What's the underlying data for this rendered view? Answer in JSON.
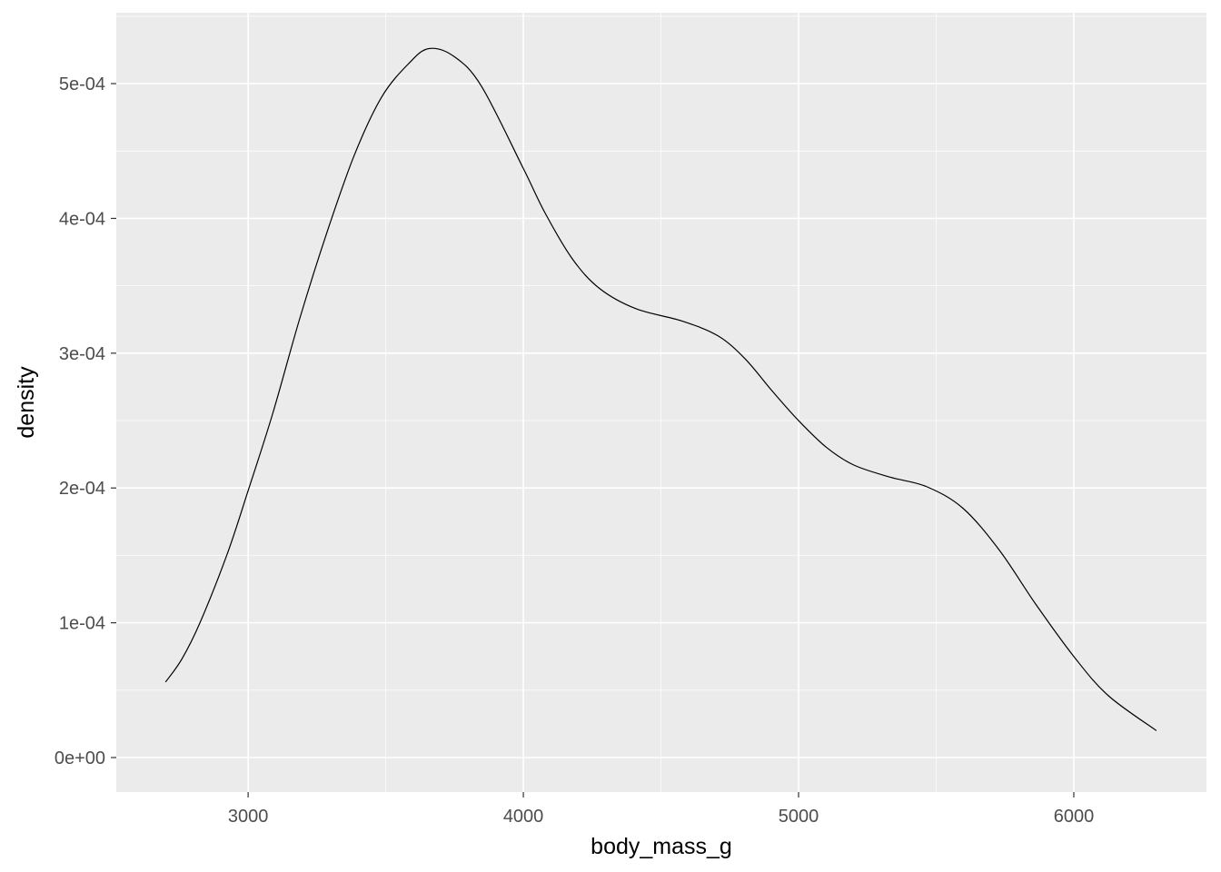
{
  "chart_data": {
    "type": "line",
    "title": "",
    "xlabel": "body_mass_g",
    "ylabel": "density",
    "xlim": [
      2521,
      6482
    ],
    "ylim": [
      -2.56e-05,
      0.0005526
    ],
    "grid": true,
    "x_ticks": [
      3000,
      4000,
      5000,
      6000
    ],
    "x_tick_labels": [
      "3000",
      "4000",
      "5000",
      "6000"
    ],
    "y_ticks": [
      0,
      0.0001,
      0.0002,
      0.0003,
      0.0004,
      0.0005
    ],
    "y_tick_labels": [
      "0e+00",
      "1e-04",
      "2e-04",
      "3e-04",
      "4e-04",
      "5e-04"
    ],
    "colors": {
      "panel": "#EBEBEB",
      "grid": "#FFFFFF",
      "line": "#000000"
    },
    "series": [
      {
        "x": [
          2700,
          2759,
          2825,
          2924,
          3000,
          3089,
          3188,
          3287,
          3386,
          3485,
          3584,
          3657,
          3749,
          3848,
          4000,
          4079,
          4178,
          4277,
          4409,
          4574,
          4706,
          4805,
          4904,
          5000,
          5102,
          5201,
          5333,
          5465,
          5597,
          5729,
          5861,
          6000,
          6125,
          6300
        ],
        "y": [
          5.6e-05,
          7.3e-05,
          0.0001,
          0.000151,
          0.000198,
          0.000255,
          0.000326,
          0.00039,
          0.000447,
          0.00049,
          0.000515,
          0.000526,
          0.00052,
          0.000498,
          0.000437,
          0.000404,
          0.00037,
          0.000348,
          0.000333,
          0.000324,
          0.000313,
          0.000296,
          0.000272,
          0.00025,
          0.00023,
          0.000217,
          0.000208,
          0.000201,
          0.000185,
          0.000154,
          0.000114,
          7.5e-05,
          4.6e-05,
          2e-05
        ]
      }
    ]
  }
}
